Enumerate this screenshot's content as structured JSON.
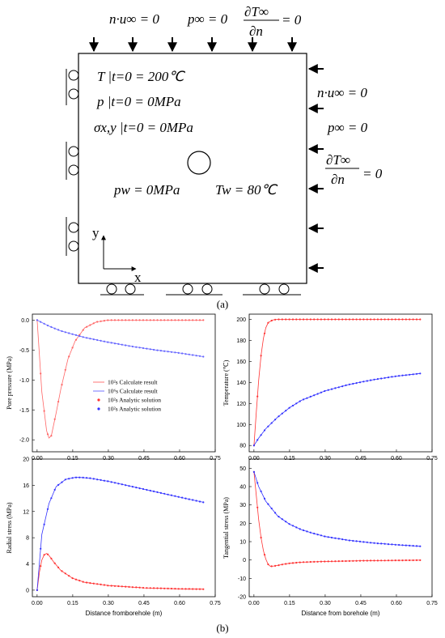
{
  "schematic": {
    "top_bc": {
      "normal_velocity": "n·u∞ = 0",
      "pressure": "p∞ = 0",
      "dT_num": "∂T∞",
      "dT_den": "∂n",
      "dT_eq": "= 0"
    },
    "right_bc": {
      "normal_velocity": "n·u∞ = 0",
      "pressure": "p∞ = 0",
      "dT_num": "∂T∞",
      "dT_den": "∂n",
      "dT_eq": "= 0"
    },
    "initial": {
      "temperature": "T |t=0 = 200℃",
      "pressure": "p |t=0 = 0MPa",
      "stress": "σx,y |t=0 = 0MPa"
    },
    "borehole": {
      "pressure": "pw = 0MPa",
      "temperature": "Tw = 80℃"
    },
    "axes": {
      "y": "y",
      "x": "x"
    },
    "caption": "(a)"
  },
  "caption_b": "(b)",
  "chart_data": [
    {
      "type": "line",
      "panel": "pore-pressure",
      "title": "",
      "xlabel": "",
      "ylabel": "Pore pressure (MPa)",
      "xlim": [
        -0.02,
        0.75
      ],
      "ylim": [
        -2.2,
        0.1
      ],
      "xticks": [
        "0.00",
        "0.15",
        "0.30",
        "0.45",
        "0.60",
        "0.75"
      ],
      "yticks": [
        "0.0",
        "-0.5",
        "-1.0",
        "-1.5",
        "-2.0"
      ],
      "legend": {
        "placement": "center",
        "entries": [
          "10²s Calculate result",
          "10⁶s Calculate result",
          "10²s Analytic solution",
          "10²s Analytic solution"
        ]
      },
      "series": [
        {
          "name": "10²s Calculate result",
          "color": "#ff6666",
          "x": [
            0.0,
            0.02,
            0.04,
            0.05,
            0.06,
            0.08,
            0.1,
            0.13,
            0.16,
            0.2,
            0.25,
            0.3,
            0.4,
            0.5,
            0.6,
            0.7
          ],
          "y": [
            0.0,
            -1.2,
            -1.85,
            -1.97,
            -1.93,
            -1.55,
            -1.15,
            -0.65,
            -0.35,
            -0.13,
            -0.03,
            0.0,
            0.0,
            0.0,
            0.0,
            0.0
          ]
        },
        {
          "name": "10⁶s Calculate result",
          "color": "#6666ff",
          "x": [
            0.0,
            0.05,
            0.1,
            0.2,
            0.3,
            0.4,
            0.5,
            0.6,
            0.7
          ],
          "y": [
            0.0,
            -0.1,
            -0.18,
            -0.29,
            -0.37,
            -0.44,
            -0.5,
            -0.55,
            -0.61
          ]
        }
      ]
    },
    {
      "type": "line",
      "panel": "temperature",
      "title": "",
      "xlabel": "",
      "ylabel": "Temperature (℃)",
      "xlim": [
        -0.02,
        0.75
      ],
      "ylim": [
        74,
        205
      ],
      "xticks": [
        "0.00",
        "0.15",
        "0.30",
        "0.45",
        "0.60",
        "0.75"
      ],
      "yticks": [
        "80",
        "100",
        "120",
        "140",
        "160",
        "180",
        "200"
      ],
      "series": [
        {
          "name": "10²s",
          "color": "#ff3333",
          "x": [
            0.0,
            0.01,
            0.02,
            0.03,
            0.04,
            0.05,
            0.06,
            0.08,
            0.1,
            0.15,
            0.3,
            0.45,
            0.6,
            0.7
          ],
          "y": [
            80,
            112,
            142,
            166,
            182,
            192,
            197,
            199.5,
            200,
            200,
            200,
            200,
            200,
            200
          ]
        },
        {
          "name": "10⁶s",
          "color": "#3333ff",
          "x": [
            0.0,
            0.02,
            0.05,
            0.1,
            0.15,
            0.2,
            0.3,
            0.4,
            0.5,
            0.6,
            0.7
          ],
          "y": [
            80,
            87,
            96,
            107,
            116,
            123,
            132,
            138,
            142.5,
            146,
            148.5
          ]
        }
      ]
    },
    {
      "type": "line",
      "panel": "radial-stress",
      "title": "",
      "xlabel": "Distance fromborehole (m)",
      "ylabel": "Radial stress (MPa)",
      "xlim": [
        -0.02,
        0.75
      ],
      "ylim": [
        -1,
        20
      ],
      "xticks": [
        "0.00",
        "0.15",
        "0.30",
        "0.45",
        "0.60",
        "0.75"
      ],
      "yticks": [
        "0",
        "4",
        "8",
        "12",
        "16",
        "20"
      ],
      "series": [
        {
          "name": "10²s",
          "color": "#ff3333",
          "x": [
            0.0,
            0.01,
            0.02,
            0.03,
            0.04,
            0.05,
            0.07,
            0.1,
            0.15,
            0.2,
            0.3,
            0.45,
            0.6,
            0.7
          ],
          "y": [
            0.0,
            2.8,
            4.6,
            5.4,
            5.6,
            5.3,
            4.3,
            3.0,
            1.8,
            1.2,
            0.7,
            0.35,
            0.2,
            0.15
          ]
        },
        {
          "name": "10⁶s",
          "color": "#3333ff",
          "x": [
            0.0,
            0.02,
            0.05,
            0.08,
            0.12,
            0.16,
            0.18,
            0.22,
            0.3,
            0.4,
            0.5,
            0.6,
            0.7
          ],
          "y": [
            0.0,
            8.5,
            13.2,
            15.8,
            16.9,
            17.2,
            17.2,
            17.1,
            16.6,
            15.8,
            15.0,
            14.2,
            13.4
          ]
        }
      ]
    },
    {
      "type": "line",
      "panel": "tangential-stress",
      "title": "",
      "xlabel": "Distance from borehole (m)",
      "ylabel": "Tangential stress (MPa)",
      "xlim": [
        -0.02,
        0.75
      ],
      "ylim": [
        -20,
        55
      ],
      "xticks": [
        "0.00",
        "0.15",
        "0.30",
        "0.45",
        "0.60",
        "0.75"
      ],
      "yticks": [
        "-20",
        "-10",
        "0",
        "10",
        "20",
        "30",
        "40",
        "50"
      ],
      "series": [
        {
          "name": "10²s",
          "color": "#ff3333",
          "x": [
            0.0,
            0.01,
            0.02,
            0.03,
            0.04,
            0.05,
            0.06,
            0.07,
            0.09,
            0.12,
            0.15,
            0.2,
            0.3,
            0.45,
            0.6,
            0.7
          ],
          "y": [
            48,
            35,
            22,
            12,
            5,
            0.5,
            -2.5,
            -3.5,
            -3.2,
            -2.4,
            -1.8,
            -1.2,
            -0.8,
            -0.4,
            -0.2,
            -0.1
          ]
        },
        {
          "name": "10⁶s",
          "color": "#3333ff",
          "x": [
            0.0,
            0.02,
            0.05,
            0.1,
            0.15,
            0.2,
            0.25,
            0.3,
            0.4,
            0.5,
            0.6,
            0.7
          ],
          "y": [
            48,
            40,
            32,
            24,
            19.5,
            16.5,
            14.5,
            12.8,
            10.7,
            9.3,
            8.3,
            7.5
          ]
        }
      ]
    }
  ]
}
